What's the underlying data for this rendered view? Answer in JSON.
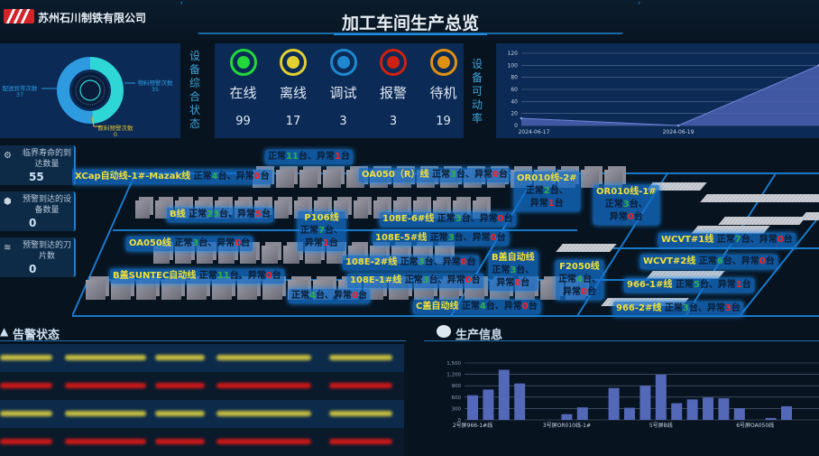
{
  "header": {
    "company": "苏州石川制铁有限公司",
    "title": "加工车间生产总览"
  },
  "donut": {
    "items": [
      {
        "label": "配送异常次数",
        "value": 37,
        "color": "#2e9be0"
      },
      {
        "label": "物料预警次数",
        "value": 35,
        "color": "#2fd6d6"
      },
      {
        "label": "原料预警次数",
        "value": 0,
        "color": "#e0c030"
      }
    ]
  },
  "status_label": "设备综合状态",
  "status": [
    {
      "label": "在线",
      "value": "99",
      "color": "#22d83a"
    },
    {
      "label": "离线",
      "value": "17",
      "color": "#e0d030"
    },
    {
      "label": "调试",
      "value": "3",
      "color": "#1e88d0"
    },
    {
      "label": "报警",
      "value": "3",
      "color": "#d02010"
    },
    {
      "label": "待机",
      "value": "19",
      "color": "#e09010"
    }
  ],
  "availability_label": "设备可动率",
  "chart_data": [
    {
      "type": "area",
      "x": [
        "2024-06-17",
        "2024-06-19",
        ""
      ],
      "values": [
        12,
        0,
        100
      ],
      "ylim": [
        0,
        120
      ],
      "yticks": [
        0,
        20,
        40,
        60,
        80,
        100,
        120
      ],
      "grid": true,
      "color": "#4a5fb0"
    },
    {
      "type": "bar",
      "categories": [
        "2号屏966-1#线",
        "",
        "",
        "",
        "",
        "",
        "3号屏OR010线-1#",
        "",
        "",
        "",
        "",
        "",
        "5号屏B线",
        "",
        "",
        "",
        "",
        "",
        "6号屏OA050线",
        "",
        ""
      ],
      "values": [
        650,
        800,
        1320,
        960,
        0,
        0,
        150,
        330,
        0,
        840,
        320,
        900,
        1190,
        440,
        540,
        590,
        570,
        310,
        0,
        50,
        360
      ],
      "ylim": [
        0,
        1500
      ],
      "yticks": [
        "0",
        "300",
        "600",
        "900",
        "1,200",
        "1,500"
      ],
      "grid": true,
      "color": "#5468b8"
    }
  ],
  "kpis": [
    {
      "label": "临界寿命的到达数量",
      "value": "55",
      "icon": "gears-icon"
    },
    {
      "label": "预警到达的设备数量",
      "value": "0",
      "icon": "shield-icon"
    },
    {
      "label": "预警到达的刀片数",
      "value": "0",
      "icon": "layers-icon"
    }
  ],
  "map": {
    "normal_word": "正常",
    "mid_word": "台、异常",
    "unit": "台",
    "lines": [
      {
        "name": "XCap自动线-1#-Mazak线",
        "normal": "4",
        "abnormal": "0"
      },
      {
        "name": "",
        "normal": "11",
        "abnormal": "1"
      },
      {
        "name": "OA050（R）线",
        "normal": "3",
        "abnormal": "0"
      },
      {
        "name": "OR010线-2#",
        "normal": "2",
        "abnormal": "1"
      },
      {
        "name": "OR010线-1#",
        "normal": "3",
        "abnormal": "0"
      },
      {
        "name": "B线",
        "normal": "23",
        "abnormal": "5"
      },
      {
        "name": "P106线",
        "normal": "7",
        "abnormal": "1"
      },
      {
        "name": "108E-6#线",
        "normal": "3",
        "abnormal": "0"
      },
      {
        "name": "108E-5#线",
        "normal": "3",
        "abnormal": "0"
      },
      {
        "name": "OA050线",
        "normal": "3",
        "abnormal": "0"
      },
      {
        "name": "WCVT#1线",
        "normal": "7",
        "abnormal": "0"
      },
      {
        "name": "B盖自动线",
        "normal": "3",
        "abnormal": "0"
      },
      {
        "name": "F2050线",
        "normal": "4",
        "abnormal": "0"
      },
      {
        "name": "108E-2#线",
        "normal": "3",
        "abnormal": "0"
      },
      {
        "name": "WCVT#2线",
        "normal": "6",
        "abnormal": "0"
      },
      {
        "name": "B盖SUNTEC自动线",
        "normal": "11",
        "abnormal": "0"
      },
      {
        "name": "",
        "normal": "4",
        "abnormal": "0"
      },
      {
        "name": "108E-1#线",
        "normal": "3",
        "abnormal": "0"
      },
      {
        "name": "966-1#线",
        "normal": "5",
        "abnormal": "1"
      },
      {
        "name": "C盖自动线",
        "normal": "4",
        "abnormal": "0"
      },
      {
        "name": "966-2#线",
        "normal": "3",
        "abnormal": "3"
      }
    ]
  },
  "alarm": {
    "title": "告警状态",
    "row_colors": [
      "#c8c040",
      "#d01818",
      "#c8c040",
      "#d01818"
    ]
  },
  "production": {
    "title": "生产信息"
  }
}
